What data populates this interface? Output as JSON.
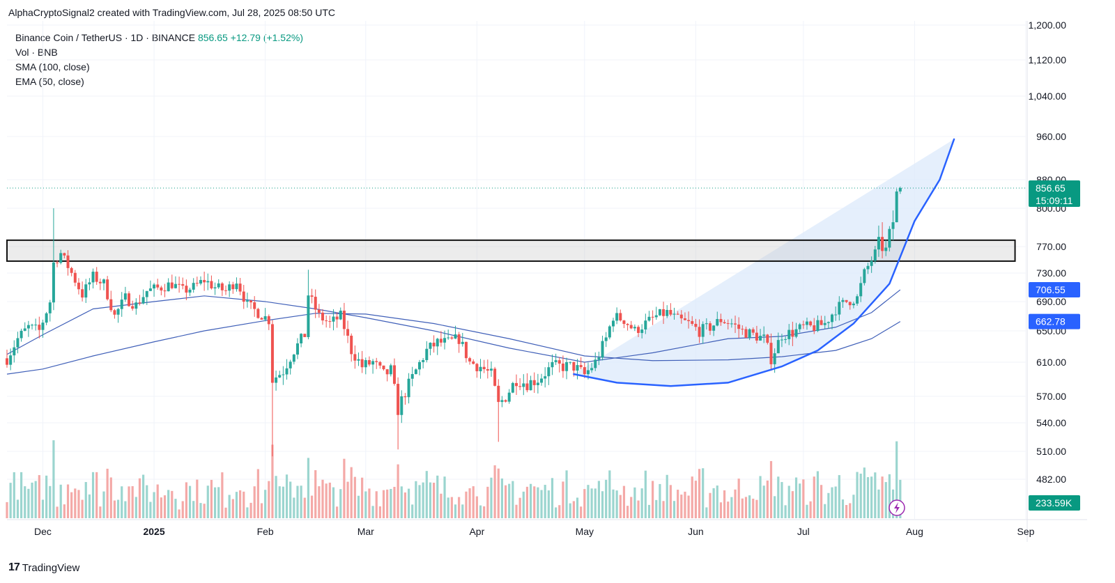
{
  "header": {
    "attribution": "AlphaCryptoSignal2 created with TradingView.com, Jul 28, 2025 08:50 UTC"
  },
  "legend": {
    "symbol": "Binance Coin / TetherUS · 1D · BINANCE",
    "price": "856.65",
    "change": "+12.79 (+1.52%)",
    "volume": "Vol · BNB",
    "sma": "SMA (100, close)",
    "ema": "EMA (50, close)"
  },
  "footer": {
    "brand": "TradingView",
    "logo_icon": "tradingview-logo-icon"
  },
  "colors": {
    "up": "#26a69a",
    "down": "#ef5350",
    "vol_up": "#9bd5cf",
    "vol_down": "#f4a9a7",
    "ma": "#3f5fb8",
    "curve": "#2962ff",
    "fill": "#dce9fb",
    "badge_price": "#089981",
    "badge_ma": "#2962ff"
  },
  "chart_data": {
    "type": "candlestick",
    "y_ticks": [
      "1,200.00",
      "1,120.00",
      "1,040.00",
      "960.00",
      "880.00",
      "800.00",
      "770.00",
      "730.00",
      "690.00",
      "650.00",
      "610.00",
      "570.00",
      "540.00",
      "510.00",
      "482.00"
    ],
    "y_tick_values": [
      1200,
      1120,
      1040,
      960,
      880,
      800,
      770,
      730,
      690,
      650,
      610,
      570,
      540,
      510,
      482
    ],
    "x_ticks": [
      "Dec",
      "2025",
      "Feb",
      "Mar",
      "Apr",
      "May",
      "Jun",
      "Jul",
      "Aug",
      "Sep"
    ],
    "x_tick_dates": [
      "2024-12-01",
      "2025-01-01",
      "2025-02-01",
      "2025-03-01",
      "2025-04-01",
      "2025-05-01",
      "2025-06-01",
      "2025-07-01",
      "2025-08-01",
      "2025-09-01"
    ],
    "x_range": [
      "2024-11-21",
      "2025-09-01"
    ],
    "last_price": {
      "value": 856.65,
      "label": "856.65",
      "countdown": "15:09:11"
    },
    "ma_labels": [
      {
        "name": "EMA (50, close)",
        "value": 706.55,
        "label": "706.55"
      },
      {
        "name": "SMA (100, close)",
        "value": 662.78,
        "label": "662.78"
      }
    ],
    "volume_label": "233.59K",
    "resistance_zone": {
      "top": 775,
      "bottom": 748,
      "start": "2024-11-21",
      "end": "2025-08-29"
    },
    "closes": [
      [
        "2024-11-21",
        615
      ],
      [
        "2024-11-24",
        640
      ],
      [
        "2024-11-27",
        655
      ],
      [
        "2024-11-30",
        650
      ],
      [
        "2024-12-03",
        690
      ],
      [
        "2024-12-04",
        745
      ],
      [
        "2024-12-06",
        760
      ],
      [
        "2024-12-09",
        730
      ],
      [
        "2024-12-12",
        700
      ],
      [
        "2024-12-15",
        725
      ],
      [
        "2024-12-18",
        715
      ],
      [
        "2024-12-21",
        670
      ],
      [
        "2024-12-24",
        695
      ],
      [
        "2024-12-27",
        685
      ],
      [
        "2024-12-30",
        705
      ],
      [
        "2025-01-03",
        710
      ],
      [
        "2025-01-06",
        715
      ],
      [
        "2025-01-09",
        705
      ],
      [
        "2025-01-12",
        710
      ],
      [
        "2025-01-15",
        720
      ],
      [
        "2025-01-18",
        710
      ],
      [
        "2025-01-21",
        705
      ],
      [
        "2025-01-24",
        720
      ],
      [
        "2025-01-27",
        685
      ],
      [
        "2025-01-30",
        675
      ],
      [
        "2025-02-02",
        665
      ],
      [
        "2025-02-03",
        590
      ],
      [
        "2025-02-06",
        600
      ],
      [
        "2025-02-09",
        625
      ],
      [
        "2025-02-12",
        645
      ],
      [
        "2025-02-13",
        700
      ],
      [
        "2025-02-16",
        670
      ],
      [
        "2025-02-19",
        660
      ],
      [
        "2025-02-22",
        670
      ],
      [
        "2025-02-25",
        625
      ],
      [
        "2025-02-28",
        605
      ],
      [
        "2025-03-03",
        610
      ],
      [
        "2025-03-06",
        595
      ],
      [
        "2025-03-08",
        600
      ],
      [
        "2025-03-10",
        555
      ],
      [
        "2025-03-12",
        575
      ],
      [
        "2025-03-15",
        600
      ],
      [
        "2025-03-18",
        625
      ],
      [
        "2025-03-21",
        635
      ],
      [
        "2025-03-24",
        635
      ],
      [
        "2025-03-27",
        640
      ],
      [
        "2025-03-30",
        610
      ],
      [
        "2025-04-02",
        605
      ],
      [
        "2025-04-05",
        595
      ],
      [
        "2025-04-07",
        560
      ],
      [
        "2025-04-09",
        570
      ],
      [
        "2025-04-12",
        590
      ],
      [
        "2025-04-15",
        585
      ],
      [
        "2025-04-18",
        590
      ],
      [
        "2025-04-22",
        605
      ],
      [
        "2025-04-25",
        605
      ],
      [
        "2025-04-28",
        605
      ],
      [
        "2025-05-01",
        595
      ],
      [
        "2025-05-04",
        610
      ],
      [
        "2025-05-07",
        640
      ],
      [
        "2025-05-09",
        670
      ],
      [
        "2025-05-12",
        665
      ],
      [
        "2025-05-15",
        650
      ],
      [
        "2025-05-18",
        660
      ],
      [
        "2025-05-21",
        670
      ],
      [
        "2025-05-24",
        675
      ],
      [
        "2025-05-27",
        665
      ],
      [
        "2025-05-30",
        660
      ],
      [
        "2025-06-02",
        650
      ],
      [
        "2025-06-05",
        655
      ],
      [
        "2025-06-08",
        665
      ],
      [
        "2025-06-11",
        660
      ],
      [
        "2025-06-14",
        650
      ],
      [
        "2025-06-17",
        645
      ],
      [
        "2025-06-20",
        640
      ],
      [
        "2025-06-22",
        615
      ],
      [
        "2025-06-25",
        645
      ],
      [
        "2025-06-28",
        648
      ],
      [
        "2025-07-01",
        655
      ],
      [
        "2025-07-04",
        655
      ],
      [
        "2025-07-07",
        660
      ],
      [
        "2025-07-10",
        680
      ],
      [
        "2025-07-13",
        690
      ],
      [
        "2025-07-16",
        695
      ],
      [
        "2025-07-18",
        730
      ],
      [
        "2025-07-20",
        750
      ],
      [
        "2025-07-22",
        770
      ],
      [
        "2025-07-24",
        765
      ],
      [
        "2025-07-26",
        790
      ],
      [
        "2025-07-27",
        844
      ],
      [
        "2025-07-28",
        856.65
      ]
    ],
    "ema50": [
      [
        "2024-11-21",
        620
      ],
      [
        "2024-12-01",
        645
      ],
      [
        "2024-12-15",
        680
      ],
      [
        "2025-01-01",
        690
      ],
      [
        "2025-01-15",
        698
      ],
      [
        "2025-02-01",
        690
      ],
      [
        "2025-02-15",
        680
      ],
      [
        "2025-03-01",
        668
      ],
      [
        "2025-03-20",
        650
      ],
      [
        "2025-04-10",
        628
      ],
      [
        "2025-05-01",
        610
      ],
      [
        "2025-05-20",
        622
      ],
      [
        "2025-06-10",
        640
      ],
      [
        "2025-06-25",
        643
      ],
      [
        "2025-07-10",
        655
      ],
      [
        "2025-07-20",
        675
      ],
      [
        "2025-07-28",
        706.55
      ]
    ],
    "sma100": [
      [
        "2024-11-21",
        596
      ],
      [
        "2024-12-01",
        602
      ],
      [
        "2024-12-15",
        618
      ],
      [
        "2025-01-01",
        636
      ],
      [
        "2025-01-15",
        650
      ],
      [
        "2025-02-01",
        664
      ],
      [
        "2025-02-15",
        674
      ],
      [
        "2025-03-01",
        673
      ],
      [
        "2025-03-20",
        660
      ],
      [
        "2025-04-10",
        640
      ],
      [
        "2025-05-01",
        618
      ],
      [
        "2025-05-20",
        612
      ],
      [
        "2025-06-10",
        613
      ],
      [
        "2025-06-25",
        617
      ],
      [
        "2025-07-10",
        625
      ],
      [
        "2025-07-20",
        640
      ],
      [
        "2025-07-28",
        662.78
      ]
    ],
    "cup_curve": [
      [
        "2025-04-28",
        596
      ],
      [
        "2025-05-10",
        586
      ],
      [
        "2025-05-25",
        582
      ],
      [
        "2025-06-10",
        586
      ],
      [
        "2025-06-25",
        605
      ],
      [
        "2025-07-05",
        625
      ],
      [
        "2025-07-15",
        660
      ],
      [
        "2025-07-25",
        715
      ],
      [
        "2025-08-01",
        790
      ],
      [
        "2025-08-08",
        880
      ],
      [
        "2025-08-12",
        955
      ]
    ],
    "projection_upper": [
      [
        "2025-04-28",
        596
      ],
      [
        "2025-08-12",
        955
      ]
    ]
  }
}
